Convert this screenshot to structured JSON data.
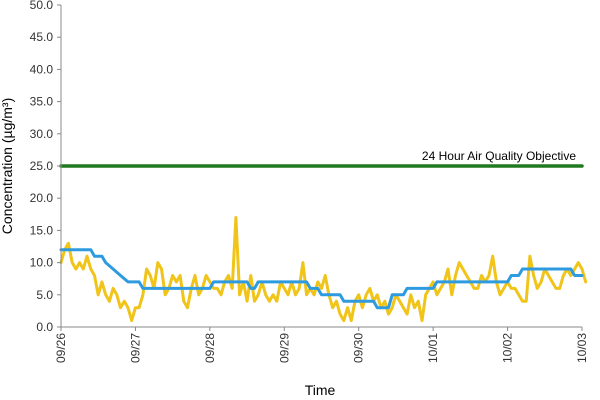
{
  "chart_data": {
    "type": "line",
    "title": "",
    "xlabel": "Time",
    "ylabel": "Concentration (µg/m³)",
    "ylim": [
      0,
      50
    ],
    "yticks": [
      "0.0",
      "5.0",
      "10.0",
      "15.0",
      "20.0",
      "25.0",
      "30.0",
      "35.0",
      "40.0",
      "45.0",
      "50.0"
    ],
    "xlim": [
      "09/26",
      "10/03"
    ],
    "xticks": [
      "09/26",
      "09/27",
      "09/28",
      "09/29",
      "09/30",
      "10/01",
      "10/02",
      "10/03"
    ],
    "grid": false,
    "legend": "none",
    "annotations": [
      {
        "text": "24 Hour Air Quality Objective",
        "y": 25
      }
    ],
    "series": [
      {
        "color": "#f0c419",
        "x_unit": "days since 09/26",
        "points": [
          [
            0.0,
            10
          ],
          [
            0.05,
            12
          ],
          [
            0.1,
            13
          ],
          [
            0.15,
            10
          ],
          [
            0.2,
            9
          ],
          [
            0.25,
            10
          ],
          [
            0.3,
            9
          ],
          [
            0.35,
            11
          ],
          [
            0.4,
            9
          ],
          [
            0.45,
            8
          ],
          [
            0.5,
            5
          ],
          [
            0.55,
            7
          ],
          [
            0.6,
            5
          ],
          [
            0.65,
            4
          ],
          [
            0.7,
            6
          ],
          [
            0.75,
            5
          ],
          [
            0.8,
            3
          ],
          [
            0.85,
            4
          ],
          [
            0.9,
            3
          ],
          [
            0.95,
            1
          ],
          [
            1.0,
            3
          ],
          [
            1.05,
            3
          ],
          [
            1.1,
            5
          ],
          [
            1.15,
            9
          ],
          [
            1.2,
            8
          ],
          [
            1.25,
            6
          ],
          [
            1.3,
            10
          ],
          [
            1.35,
            9
          ],
          [
            1.4,
            5
          ],
          [
            1.45,
            6
          ],
          [
            1.5,
            8
          ],
          [
            1.55,
            7
          ],
          [
            1.6,
            8
          ],
          [
            1.65,
            4
          ],
          [
            1.7,
            3
          ],
          [
            1.75,
            6
          ],
          [
            1.8,
            8
          ],
          [
            1.85,
            5
          ],
          [
            1.9,
            6
          ],
          [
            1.95,
            8
          ],
          [
            2.0,
            7
          ],
          [
            2.05,
            6
          ],
          [
            2.1,
            6
          ],
          [
            2.15,
            5
          ],
          [
            2.2,
            7
          ],
          [
            2.25,
            8
          ],
          [
            2.3,
            6
          ],
          [
            2.35,
            17
          ],
          [
            2.4,
            5
          ],
          [
            2.45,
            7
          ],
          [
            2.5,
            4
          ],
          [
            2.55,
            8
          ],
          [
            2.6,
            4
          ],
          [
            2.65,
            5
          ],
          [
            2.7,
            7
          ],
          [
            2.75,
            5
          ],
          [
            2.8,
            4
          ],
          [
            2.85,
            5
          ],
          [
            2.9,
            4
          ],
          [
            2.95,
            7
          ],
          [
            3.0,
            6
          ],
          [
            3.05,
            5
          ],
          [
            3.1,
            7
          ],
          [
            3.15,
            5
          ],
          [
            3.2,
            6
          ],
          [
            3.25,
            10
          ],
          [
            3.3,
            5
          ],
          [
            3.35,
            6
          ],
          [
            3.4,
            5
          ],
          [
            3.45,
            7
          ],
          [
            3.5,
            6
          ],
          [
            3.55,
            8
          ],
          [
            3.6,
            5
          ],
          [
            3.65,
            3
          ],
          [
            3.7,
            4
          ],
          [
            3.75,
            2
          ],
          [
            3.8,
            1
          ],
          [
            3.85,
            3
          ],
          [
            3.9,
            1
          ],
          [
            3.95,
            4
          ],
          [
            4.0,
            5
          ],
          [
            4.05,
            3
          ],
          [
            4.1,
            5
          ],
          [
            4.15,
            6
          ],
          [
            4.2,
            4
          ],
          [
            4.25,
            5
          ],
          [
            4.3,
            3
          ],
          [
            4.35,
            4
          ],
          [
            4.4,
            2
          ],
          [
            4.45,
            3
          ],
          [
            4.5,
            5
          ],
          [
            4.55,
            4
          ],
          [
            4.6,
            3
          ],
          [
            4.65,
            2
          ],
          [
            4.7,
            5
          ],
          [
            4.75,
            3
          ],
          [
            4.8,
            4
          ],
          [
            4.85,
            1
          ],
          [
            4.9,
            5
          ],
          [
            4.95,
            6
          ],
          [
            5.0,
            7
          ],
          [
            5.05,
            5
          ],
          [
            5.1,
            6
          ],
          [
            5.15,
            7
          ],
          [
            5.2,
            9
          ],
          [
            5.25,
            5
          ],
          [
            5.3,
            8
          ],
          [
            5.35,
            10
          ],
          [
            5.4,
            9
          ],
          [
            5.45,
            8
          ],
          [
            5.5,
            7
          ],
          [
            5.55,
            6
          ],
          [
            5.6,
            6
          ],
          [
            5.65,
            8
          ],
          [
            5.7,
            7
          ],
          [
            5.75,
            8
          ],
          [
            5.8,
            11
          ],
          [
            5.85,
            7
          ],
          [
            5.9,
            5
          ],
          [
            5.95,
            6
          ],
          [
            6.0,
            7
          ],
          [
            6.05,
            6
          ],
          [
            6.1,
            6
          ],
          [
            6.15,
            5
          ],
          [
            6.2,
            4
          ],
          [
            6.25,
            4
          ],
          [
            6.3,
            11
          ],
          [
            6.35,
            8
          ],
          [
            6.4,
            6
          ],
          [
            6.45,
            7
          ],
          [
            6.5,
            9
          ],
          [
            6.55,
            8
          ],
          [
            6.6,
            7
          ],
          [
            6.65,
            6
          ],
          [
            6.7,
            6
          ],
          [
            6.75,
            8
          ],
          [
            6.8,
            9
          ],
          [
            6.85,
            8
          ],
          [
            6.9,
            9
          ],
          [
            6.95,
            10
          ],
          [
            7.0,
            9
          ],
          [
            7.05,
            7
          ]
        ]
      },
      {
        "color": "#2e9be0",
        "x_unit": "days since 09/26",
        "points": [
          [
            0.0,
            12
          ],
          [
            0.4,
            12
          ],
          [
            0.45,
            11
          ],
          [
            0.55,
            11
          ],
          [
            0.6,
            10
          ],
          [
            0.7,
            9
          ],
          [
            0.8,
            8
          ],
          [
            0.9,
            7
          ],
          [
            1.05,
            7
          ],
          [
            1.1,
            6
          ],
          [
            2.0,
            6
          ],
          [
            2.05,
            7
          ],
          [
            2.5,
            7
          ],
          [
            2.55,
            6
          ],
          [
            2.6,
            6
          ],
          [
            2.65,
            7
          ],
          [
            3.3,
            7
          ],
          [
            3.35,
            6
          ],
          [
            3.45,
            6
          ],
          [
            3.5,
            5
          ],
          [
            3.75,
            5
          ],
          [
            3.8,
            4
          ],
          [
            4.2,
            4
          ],
          [
            4.25,
            3
          ],
          [
            4.4,
            3
          ],
          [
            4.45,
            5
          ],
          [
            4.6,
            5
          ],
          [
            4.65,
            6
          ],
          [
            5.0,
            6
          ],
          [
            5.05,
            7
          ],
          [
            6.0,
            7
          ],
          [
            6.05,
            8
          ],
          [
            6.15,
            8
          ],
          [
            6.2,
            9
          ],
          [
            6.85,
            9
          ],
          [
            6.9,
            8
          ],
          [
            7.0,
            8
          ]
        ]
      },
      {
        "color": "#1f7a1f",
        "points": [
          [
            0,
            25
          ],
          [
            7,
            25
          ]
        ]
      }
    ]
  }
}
